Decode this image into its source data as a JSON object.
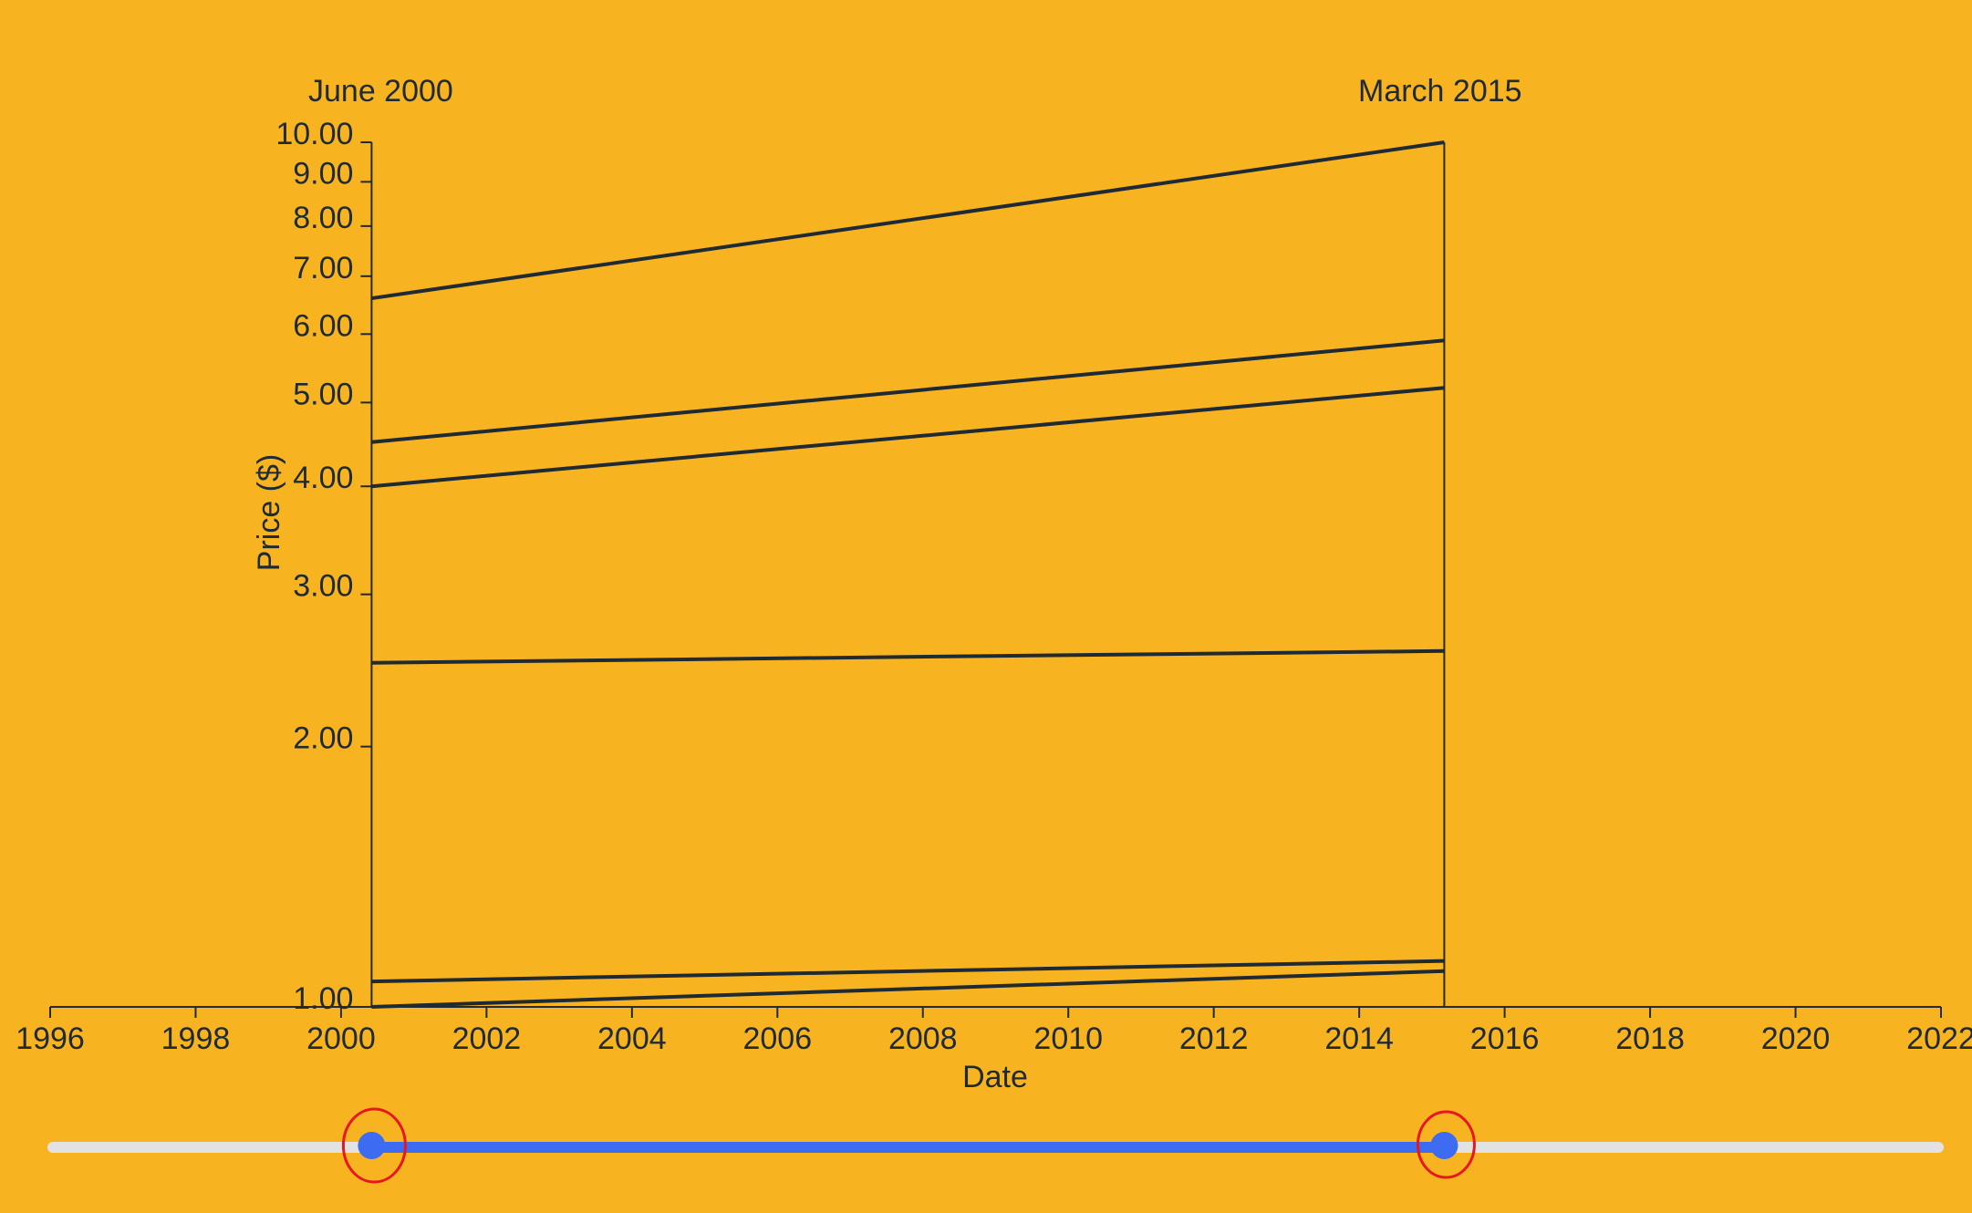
{
  "chart_data": {
    "type": "line",
    "xlabel": "Date",
    "ylabel": "Price ($)",
    "x_axis": {
      "type": "time",
      "domain": [
        1996,
        2022
      ],
      "ticks": [
        "1996",
        "1998",
        "2000",
        "2002",
        "2004",
        "2006",
        "2008",
        "2010",
        "2012",
        "2014",
        "2016",
        "2018",
        "2020",
        "2022"
      ]
    },
    "y_axis": {
      "scale": "log",
      "ylim": [
        1,
        10
      ],
      "ticks": [
        "1.00",
        "2.00",
        "3.00",
        "4.00",
        "5.00",
        "6.00",
        "7.00",
        "8.00",
        "9.00",
        "10.00"
      ]
    },
    "range": {
      "start_label": "June 2000",
      "end_label": "March 2015",
      "start": 2000.42,
      "end": 2015.17
    },
    "series": [
      {
        "x": [
          2000.42,
          2015.17
        ],
        "y": [
          6.6,
          10.0
        ]
      },
      {
        "x": [
          2000.42,
          2015.17
        ],
        "y": [
          4.5,
          5.9
        ]
      },
      {
        "x": [
          2000.42,
          2015.17
        ],
        "y": [
          4.0,
          5.2
        ]
      },
      {
        "x": [
          2000.42,
          2015.17
        ],
        "y": [
          2.5,
          2.58
        ]
      },
      {
        "x": [
          2000.42,
          2015.17
        ],
        "y": [
          1.07,
          1.13
        ]
      },
      {
        "x": [
          2000.42,
          2015.17
        ],
        "y": [
          1.0,
          1.1
        ]
      }
    ],
    "colors": {
      "background": "#f8b420",
      "ink": "#1f2a33",
      "slider_track": "#e2e2e2",
      "slider_selected": "#3d6cf2",
      "handle": "#3d6cf2",
      "highlight": "#e8161f"
    },
    "grid": false
  },
  "slider": {
    "start": 2000.42,
    "end": 2015.17
  }
}
